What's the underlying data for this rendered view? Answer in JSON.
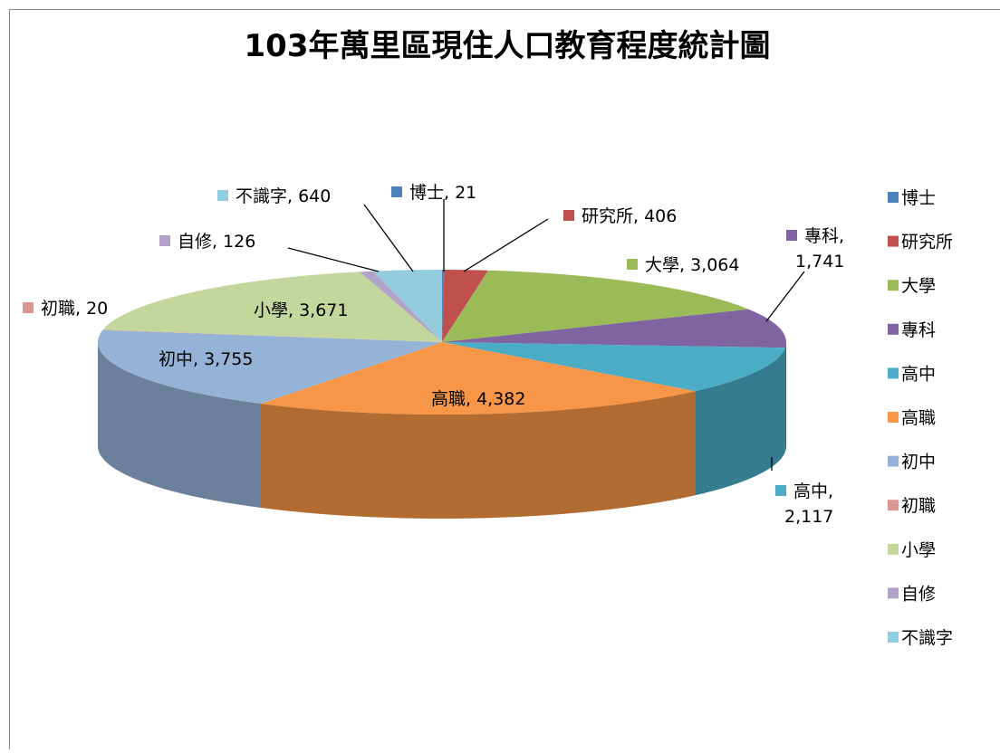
{
  "chart_data": {
    "type": "pie3d",
    "title": "103年萬里區現住人口教育程度統計圖",
    "categories": [
      "博士",
      "研究所",
      "大學",
      "專科",
      "高中",
      "高職",
      "初中",
      "初職",
      "小學",
      "自修",
      "不識字"
    ],
    "values": [
      21,
      406,
      3064,
      1741,
      2117,
      4382,
      3755,
      20,
      3671,
      126,
      640
    ],
    "value_labels": [
      "博士, 21",
      "研究所, 406",
      "大學, 3,064",
      "專科, 1,741",
      "高中, 2,117",
      "高職, 4,382",
      "初中, 3,755",
      "初職, 20",
      "小學, 3,671",
      "自修, 126",
      "不識字, 640"
    ],
    "colors": [
      "#4f81bd",
      "#c0504d",
      "#9bbb59",
      "#8064a2",
      "#4bacc6",
      "#f79646",
      "#95b3d7",
      "#d99694",
      "#c3d69b",
      "#b3a2c7",
      "#93cddd"
    ],
    "legend": "right"
  }
}
